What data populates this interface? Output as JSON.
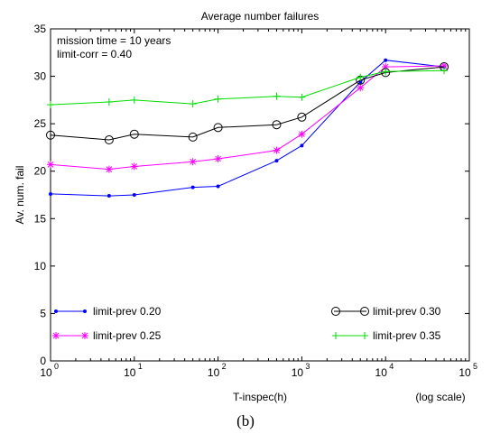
{
  "chart_data": {
    "type": "line",
    "title": "Average number failures",
    "xlabel": "T-inspec(h)",
    "ylabel": "Av. num. fail",
    "x_scale": "log",
    "x_scale_note": "(log scale)",
    "xlim": [
      1,
      100000
    ],
    "ylim": [
      0,
      35
    ],
    "x_tick_labels": [
      {
        "base": "10",
        "exp": "0"
      },
      {
        "base": "10",
        "exp": "1"
      },
      {
        "base": "10",
        "exp": "2"
      },
      {
        "base": "10",
        "exp": "3"
      },
      {
        "base": "10",
        "exp": "4"
      },
      {
        "base": "10",
        "exp": "5"
      }
    ],
    "x_tick_values": [
      1,
      10,
      100,
      1000,
      10000,
      100000
    ],
    "y_ticks": [
      0,
      5,
      10,
      15,
      20,
      25,
      30,
      35
    ],
    "grid": false,
    "annotations": [
      "mission time = 10 years",
      "limit-corr = 0.40"
    ],
    "caption": "(b)",
    "x": [
      1,
      5,
      10,
      50,
      100,
      500,
      1000,
      5000,
      10000,
      50000
    ],
    "series": [
      {
        "name": "limit-prev 0.20",
        "color": "#0000ff",
        "marker": "dot",
        "values": [
          17.6,
          17.4,
          17.5,
          18.3,
          18.4,
          21.1,
          22.7,
          29.4,
          31.7,
          31.0
        ]
      },
      {
        "name": "limit-prev 0.25",
        "color": "#ff00ff",
        "marker": "star",
        "values": [
          20.7,
          20.2,
          20.5,
          21.0,
          21.3,
          22.2,
          23.9,
          28.8,
          31.0,
          31.1
        ]
      },
      {
        "name": "limit-prev 0.30",
        "color": "#000000",
        "marker": "circle",
        "values": [
          23.8,
          23.3,
          23.9,
          23.6,
          24.6,
          24.9,
          25.7,
          29.6,
          30.4,
          31.0
        ]
      },
      {
        "name": "limit-prev 0.35",
        "color": "#00dd00",
        "marker": "plus",
        "values": [
          27.0,
          27.3,
          27.5,
          27.1,
          27.6,
          27.9,
          27.8,
          29.9,
          30.5,
          30.6
        ]
      }
    ]
  }
}
